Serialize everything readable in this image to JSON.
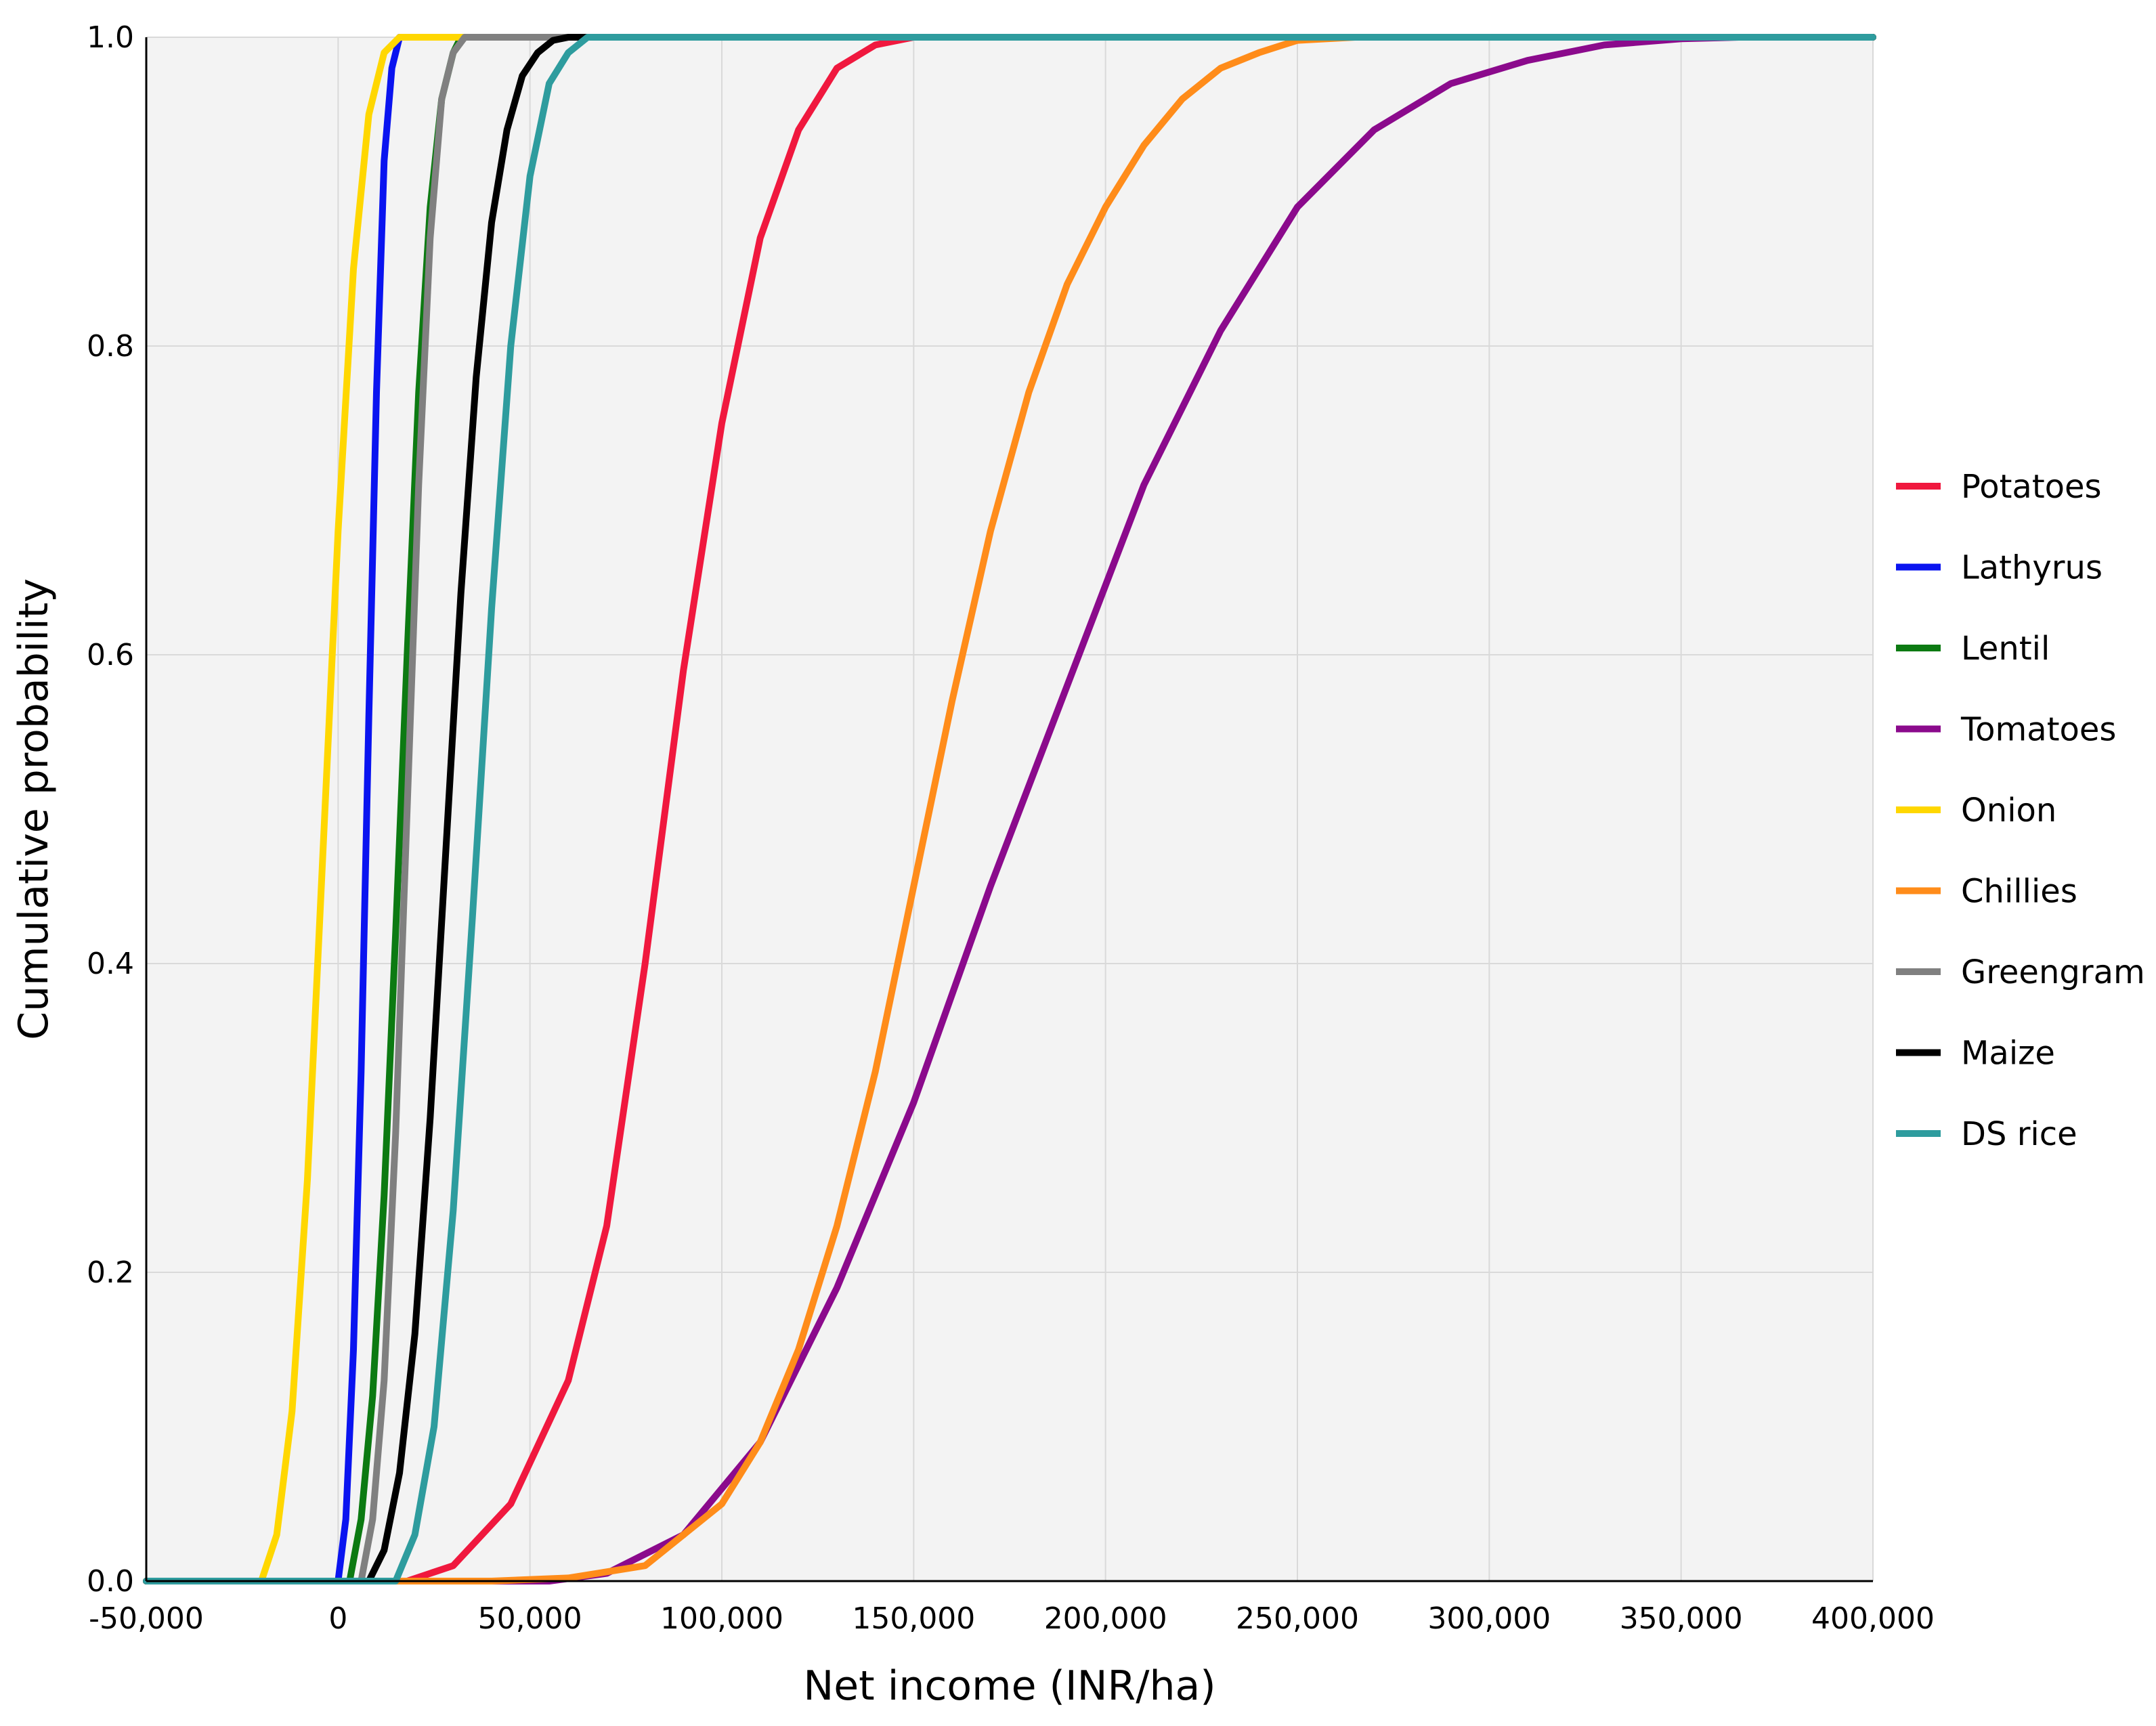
{
  "chart_data": {
    "type": "line",
    "title": "",
    "xlabel": "Net income (INR/ha)",
    "ylabel": "Cumulative probability",
    "xlim": [
      -50000,
      400000
    ],
    "ylim": [
      0,
      1
    ],
    "grid": true,
    "legend_position": "right",
    "background": "#f3f3f3",
    "x_ticks": [
      {
        "value": -50000,
        "label": "-50,000"
      },
      {
        "value": 0,
        "label": "0"
      },
      {
        "value": 50000,
        "label": "50,000"
      },
      {
        "value": 100000,
        "label": "100,000"
      },
      {
        "value": 150000,
        "label": "150,000"
      },
      {
        "value": 200000,
        "label": "200,000"
      },
      {
        "value": 250000,
        "label": "250,000"
      },
      {
        "value": 300000,
        "label": "300,000"
      },
      {
        "value": 350000,
        "label": "350,000"
      },
      {
        "value": 400000,
        "label": "400,000"
      }
    ],
    "y_ticks": [
      {
        "value": 0,
        "label": "0.0"
      },
      {
        "value": 0.2,
        "label": "0.2"
      },
      {
        "value": 0.4,
        "label": "0.4"
      },
      {
        "value": 0.6,
        "label": "0.6"
      },
      {
        "value": 0.8,
        "label": "0.8"
      },
      {
        "value": 1.0,
        "label": "1.0"
      }
    ],
    "series": [
      {
        "name": "Potatoes",
        "color": "#f0183e",
        "x": [
          -50000,
          18000,
          30000,
          45000,
          60000,
          70000,
          80000,
          90000,
          100000,
          110000,
          120000,
          130000,
          140000,
          150000,
          157000,
          400000
        ],
        "y": [
          0,
          0,
          0.01,
          0.05,
          0.13,
          0.23,
          0.4,
          0.59,
          0.75,
          0.87,
          0.94,
          0.98,
          0.995,
          1.0,
          1.0,
          1.0
        ]
      },
      {
        "name": "Lathyrus",
        "color": "#0a14f0",
        "x": [
          -50000,
          0,
          2000,
          4000,
          6000,
          8000,
          10000,
          12000,
          14000,
          16000,
          400000
        ],
        "y": [
          0,
          0,
          0.04,
          0.15,
          0.33,
          0.56,
          0.77,
          0.92,
          0.98,
          1.0,
          1.0
        ]
      },
      {
        "name": "Lentil",
        "color": "#0c7a12",
        "x": [
          -50000,
          3000,
          6000,
          9000,
          12000,
          15000,
          18000,
          21000,
          24000,
          27000,
          30000,
          32000,
          400000
        ],
        "y": [
          0,
          0,
          0.04,
          0.12,
          0.25,
          0.42,
          0.6,
          0.77,
          0.89,
          0.96,
          0.99,
          1.0,
          1.0
        ]
      },
      {
        "name": "Tomatoes",
        "color": "#8b0a8c",
        "x": [
          -50000,
          55000,
          70000,
          90000,
          110000,
          130000,
          150000,
          170000,
          190000,
          210000,
          230000,
          250000,
          270000,
          290000,
          310000,
          330000,
          350000,
          365000,
          400000
        ],
        "y": [
          0,
          0,
          0.005,
          0.03,
          0.09,
          0.19,
          0.31,
          0.45,
          0.58,
          0.71,
          0.81,
          0.89,
          0.94,
          0.97,
          0.985,
          0.995,
          0.999,
          1.0,
          1.0
        ]
      },
      {
        "name": "Onion",
        "color": "#ffd700",
        "x": [
          -50000,
          -20000,
          -16000,
          -12000,
          -8000,
          -4000,
          0,
          4000,
          8000,
          12000,
          16000,
          400000
        ],
        "y": [
          0,
          0,
          0.03,
          0.11,
          0.26,
          0.47,
          0.68,
          0.85,
          0.95,
          0.99,
          1.0,
          1.0
        ]
      },
      {
        "name": "Chillies",
        "color": "#ff8c1a",
        "x": [
          -50000,
          40000,
          60000,
          80000,
          100000,
          110000,
          120000,
          130000,
          140000,
          150000,
          160000,
          170000,
          180000,
          190000,
          200000,
          210000,
          220000,
          230000,
          240000,
          250000,
          265000,
          400000
        ],
        "y": [
          0,
          0,
          0.002,
          0.01,
          0.05,
          0.09,
          0.15,
          0.23,
          0.33,
          0.45,
          0.57,
          0.68,
          0.77,
          0.84,
          0.89,
          0.93,
          0.96,
          0.98,
          0.99,
          0.998,
          1.0,
          1.0
        ]
      },
      {
        "name": "Greengram",
        "color": "#808080",
        "x": [
          -50000,
          6000,
          9000,
          12000,
          15000,
          18000,
          21000,
          24000,
          27000,
          30000,
          33000,
          400000
        ],
        "y": [
          0,
          0,
          0.04,
          0.13,
          0.29,
          0.5,
          0.71,
          0.87,
          0.96,
          0.99,
          1.0,
          1.0
        ]
      },
      {
        "name": "Maize",
        "color": "#000000",
        "x": [
          -50000,
          8000,
          12000,
          16000,
          20000,
          24000,
          28000,
          32000,
          36000,
          40000,
          44000,
          48000,
          52000,
          56000,
          60000,
          400000
        ],
        "y": [
          0,
          0,
          0.02,
          0.07,
          0.16,
          0.3,
          0.47,
          0.64,
          0.78,
          0.88,
          0.94,
          0.975,
          0.99,
          0.998,
          1.0,
          1.0
        ]
      },
      {
        "name": "DS rice",
        "color": "#2e9c9e",
        "x": [
          -50000,
          15000,
          20000,
          25000,
          30000,
          35000,
          40000,
          45000,
          50000,
          55000,
          60000,
          65000,
          400000
        ],
        "y": [
          0,
          0,
          0.03,
          0.1,
          0.24,
          0.43,
          0.63,
          0.8,
          0.91,
          0.97,
          0.99,
          1.0,
          1.0
        ]
      }
    ]
  }
}
